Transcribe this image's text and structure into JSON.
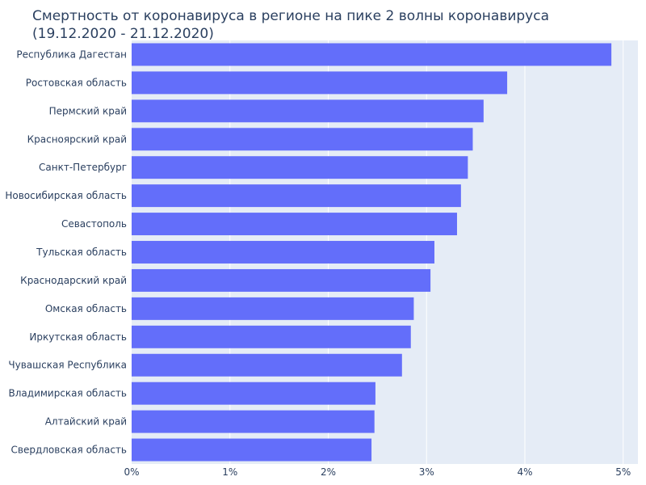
{
  "chart_data": {
    "type": "bar",
    "orientation": "horizontal",
    "title_line1": "Смертность от коронавируса в регионе на пике 2 волны коронавируса",
    "title_line2": "(19.12.2020 - 21.12.2020)",
    "xlabel": "",
    "ylabel": "",
    "xlim": [
      0,
      5.15
    ],
    "x_ticks": [
      "0%",
      "1%",
      "2%",
      "3%",
      "4%",
      "5%"
    ],
    "x_tick_values": [
      0,
      1,
      2,
      3,
      4,
      5
    ],
    "grid": true,
    "bar_color": "#636efa",
    "plot_background": "#e5ecf6",
    "categories": [
      "Республика Дагестан",
      "Ростовская область",
      "Пермский край",
      "Красноярский край",
      "Санкт-Петербург",
      "Новосибирская область",
      "Севастополь",
      "Тульская область",
      "Краснодарский край",
      "Омская область",
      "Иркутская область",
      "Чувашская Республика",
      "Владимирская область",
      "Алтайский край",
      "Свердловская область"
    ],
    "values": [
      4.88,
      3.82,
      3.58,
      3.47,
      3.42,
      3.35,
      3.31,
      3.08,
      3.04,
      2.87,
      2.84,
      2.75,
      2.48,
      2.47,
      2.44
    ]
  }
}
